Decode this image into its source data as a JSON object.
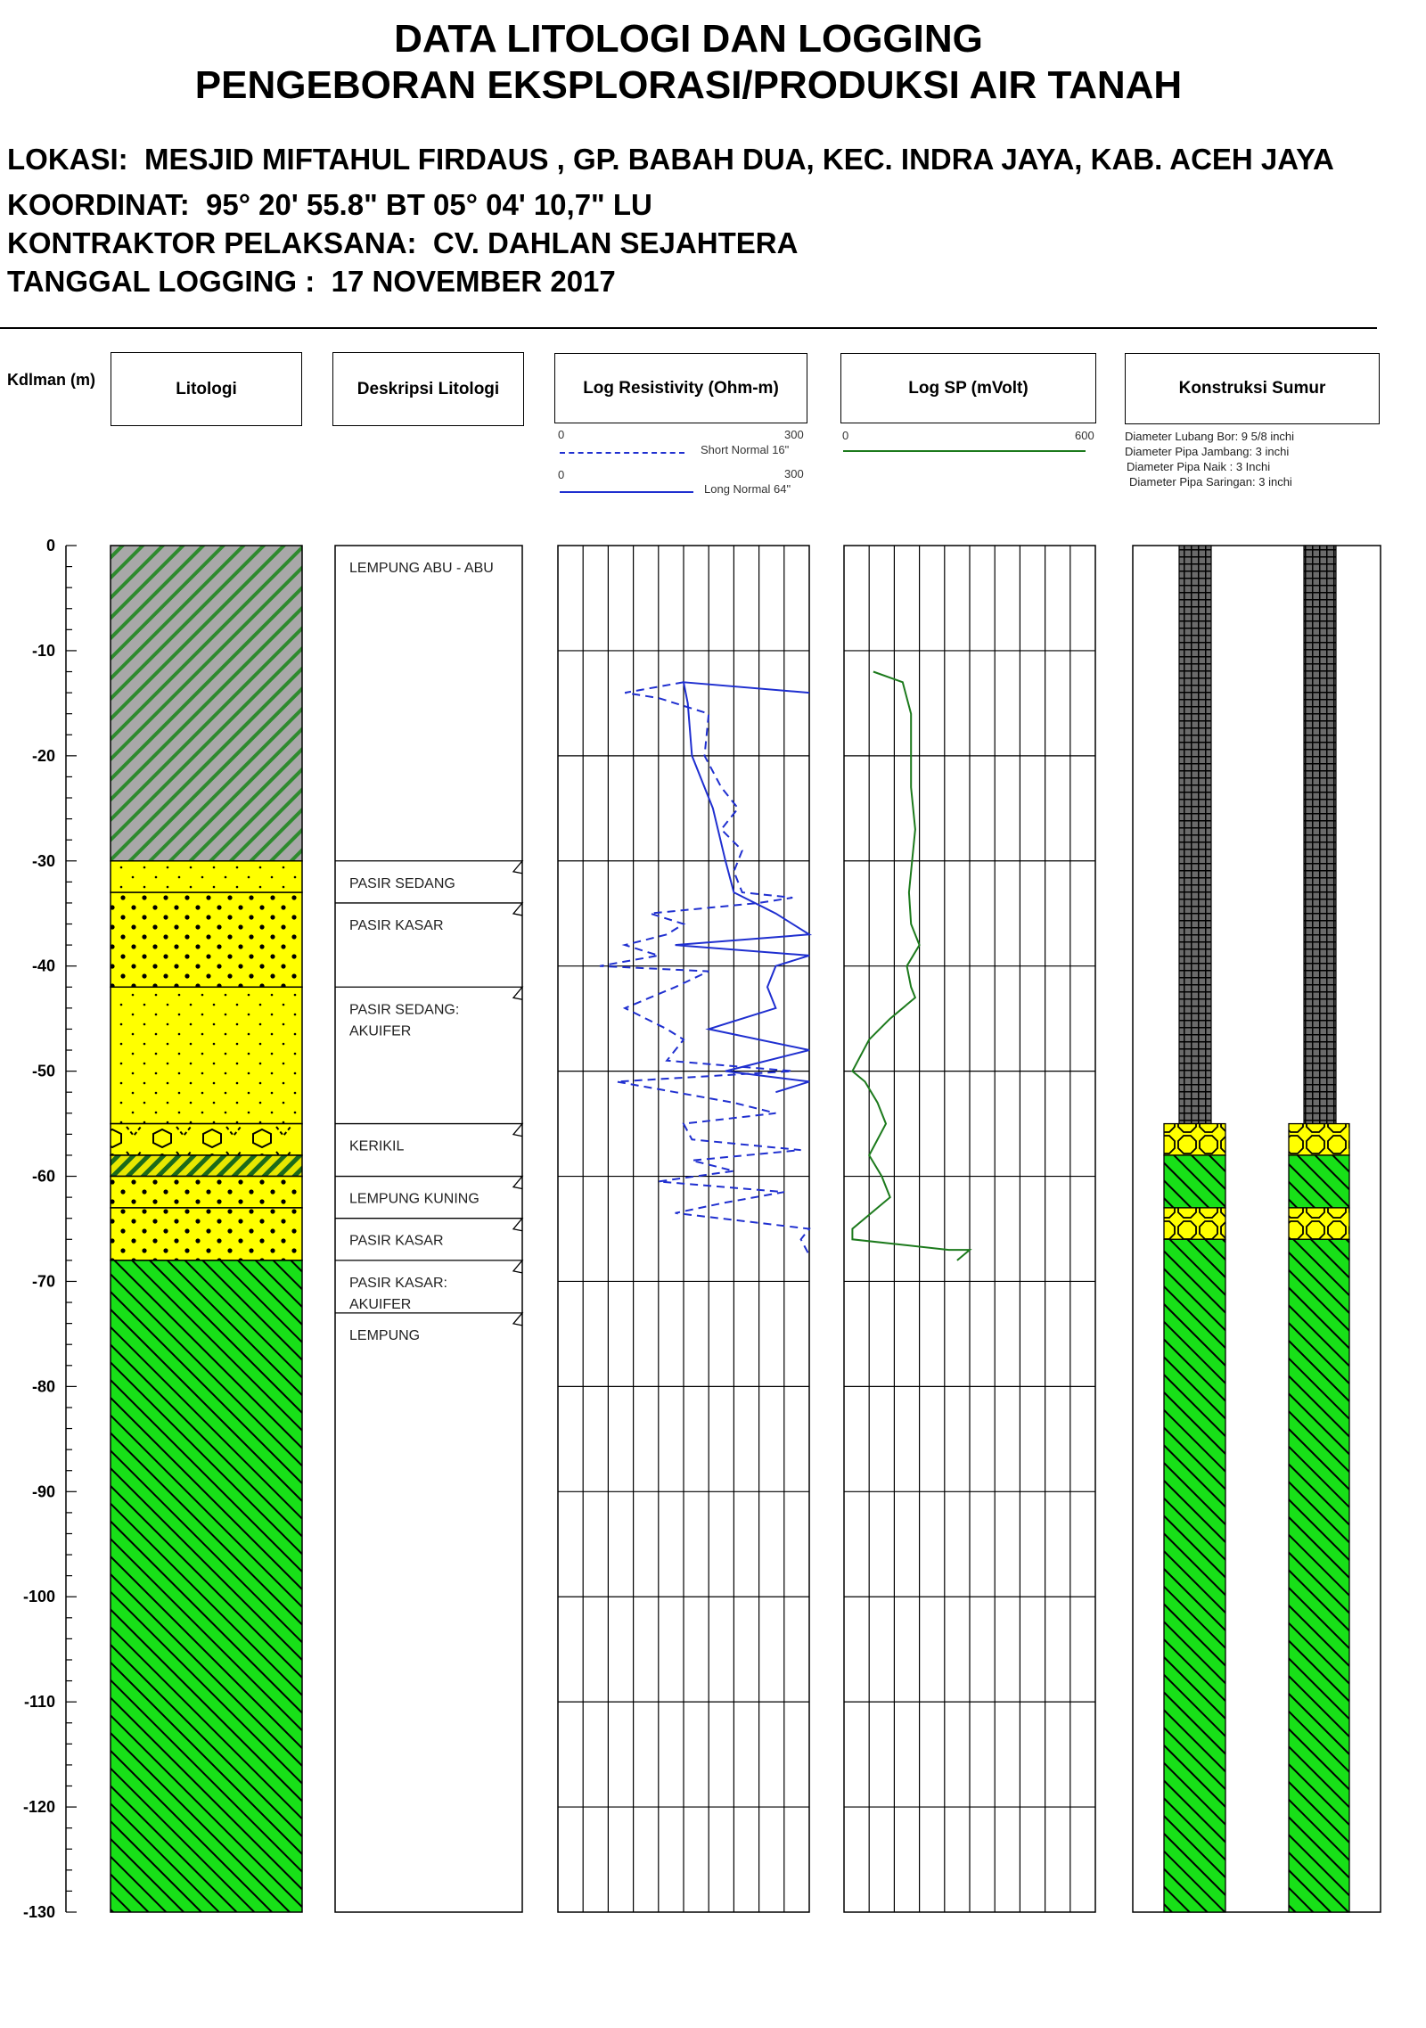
{
  "header": {
    "title_line1": "DATA LITOLOGI DAN LOGGING",
    "title_line2": "PENGEBORAN EKSPLORASI/PRODUKSI AIR TANAH",
    "lokasi_label": "LOKASI:",
    "lokasi_value": "MESJID MIFTAHUL FIRDAUS , GP. BABAH DUA, KEC. INDRA JAYA, KAB. ACEH JAYA",
    "koordinat_label": "KOORDINAT:",
    "koordinat_value": "95° 20'  55.8\" BT 05° 04'  10,7\" LU",
    "kontraktor_label": "KONTRAKTOR PELAKSANA:",
    "kontraktor_value": "CV. DAHLAN SEJAHTERA",
    "tanggal_label": "TANGGAL LOGGING :",
    "tanggal_value": "17 NOVEMBER 2017"
  },
  "columns": {
    "depth_label": "Kdlman (m)",
    "litologi": "Litologi",
    "deskripsi": "Deskripsi Litologi",
    "resistivity": "Log Resistivity (Ohm-m)",
    "sp": "Log SP (mVolt)",
    "konstruksi": "Konstruksi Sumur"
  },
  "legend": {
    "short_normal": {
      "name": "Short Normal 16\"",
      "min": "0",
      "max": "300",
      "color": "#1f2fd0"
    },
    "long_normal": {
      "name": "Long Normal 64\"",
      "min": "0",
      "max": "300",
      "color": "#1f2fd0"
    },
    "sp": {
      "min": "0",
      "max": "600",
      "color": "#1c7a1c"
    },
    "construction": [
      "Diameter Lubang Bor: 9 5/8 inchi",
      "Diameter Pipa Jambang:   3 inchi",
      "Diameter Pipa Naik :  3 Inchi",
      "Diameter Pipa Saringan:   3  inchi"
    ]
  },
  "depth_axis": {
    "min": 0,
    "max": -130,
    "ticks": [
      "0",
      "-10",
      "-20",
      "-30",
      "-40",
      "-50",
      "-60",
      "-70",
      "-80",
      "-90",
      "-100",
      "-110",
      "-120",
      "-130"
    ]
  },
  "lithology": [
    {
      "top": 0,
      "bottom": 30,
      "pattern": "clay-grey"
    },
    {
      "top": 30,
      "bottom": 33,
      "pattern": "sand-medium"
    },
    {
      "top": 33,
      "bottom": 42,
      "pattern": "sand-coarse"
    },
    {
      "top": 42,
      "bottom": 55,
      "pattern": "sand-medium"
    },
    {
      "top": 55,
      "bottom": 58,
      "pattern": "gravel"
    },
    {
      "top": 58,
      "bottom": 60,
      "pattern": "clay-yellow"
    },
    {
      "top": 60,
      "bottom": 63,
      "pattern": "sand-coarse"
    },
    {
      "top": 63,
      "bottom": 68,
      "pattern": "sand-coarse"
    },
    {
      "top": 68,
      "bottom": 130,
      "pattern": "clay-green"
    }
  ],
  "descriptions": [
    {
      "depth": 0,
      "lines": [
        "LEMPUNG ABU - ABU"
      ]
    },
    {
      "depth": 30,
      "lines": [
        "PASIR SEDANG"
      ]
    },
    {
      "depth": 34,
      "lines": [
        "PASIR KASAR"
      ]
    },
    {
      "depth": 42,
      "lines": [
        "PASIR SEDANG:",
        "AKUIFER"
      ]
    },
    {
      "depth": 55,
      "lines": [
        "KERIKIL"
      ]
    },
    {
      "depth": 60,
      "lines": [
        "LEMPUNG KUNING"
      ]
    },
    {
      "depth": 64,
      "lines": [
        "PASIR KASAR"
      ]
    },
    {
      "depth": 68,
      "lines": [
        "PASIR KASAR:",
        "AKUIFER"
      ]
    },
    {
      "depth": 73,
      "lines": [
        "LEMPUNG"
      ]
    }
  ],
  "chart_data": {
    "type": "line",
    "y_axis": "Kdlman (m)",
    "ylim": [
      0,
      -130
    ],
    "series": [
      {
        "name": "Short Normal 16\"",
        "style": "dashed",
        "xlim": [
          0,
          300
        ],
        "points": [
          [
            150,
            13
          ],
          [
            80,
            14
          ],
          [
            120,
            14.5
          ],
          [
            180,
            16
          ],
          [
            175,
            20
          ],
          [
            195,
            23
          ],
          [
            215,
            25
          ],
          [
            195,
            27
          ],
          [
            220,
            29
          ],
          [
            210,
            31
          ],
          [
            220,
            33
          ],
          [
            280,
            33.5
          ],
          [
            240,
            34
          ],
          [
            110,
            35
          ],
          [
            150,
            36
          ],
          [
            130,
            37
          ],
          [
            80,
            38
          ],
          [
            120,
            39
          ],
          [
            50,
            40
          ],
          [
            180,
            40.5
          ],
          [
            140,
            42
          ],
          [
            110,
            43
          ],
          [
            80,
            44
          ],
          [
            130,
            46
          ],
          [
            150,
            47
          ],
          [
            130,
            49
          ],
          [
            280,
            50
          ],
          [
            70,
            51
          ],
          [
            140,
            52
          ],
          [
            210,
            53
          ],
          [
            260,
            54
          ],
          [
            150,
            55
          ],
          [
            160,
            56.5
          ],
          [
            290,
            57.5
          ],
          [
            160,
            58.5
          ],
          [
            210,
            59.5
          ],
          [
            120,
            60.5
          ],
          [
            270,
            61.5
          ],
          [
            200,
            62.5
          ],
          [
            140,
            63.5
          ],
          [
            300,
            65
          ],
          [
            290,
            66
          ],
          [
            300,
            67.5
          ]
        ]
      },
      {
        "name": "Long Normal 64\"",
        "style": "solid",
        "xlim": [
          0,
          300
        ],
        "points": [
          [
            300,
            14
          ],
          [
            150,
            13
          ],
          [
            155,
            15
          ],
          [
            160,
            20
          ],
          [
            185,
            25
          ],
          [
            200,
            30
          ],
          [
            210,
            33
          ],
          [
            260,
            35
          ],
          [
            300,
            37
          ],
          [
            140,
            38
          ],
          [
            300,
            39
          ],
          [
            260,
            40
          ],
          [
            250,
            42
          ],
          [
            260,
            44
          ],
          [
            180,
            46
          ],
          [
            300,
            48
          ],
          [
            200,
            50
          ],
          [
            300,
            51
          ],
          [
            260,
            52
          ]
        ]
      },
      {
        "name": "Log SP",
        "style": "solid",
        "xlim": [
          0,
          600
        ],
        "points": [
          [
            70,
            12
          ],
          [
            140,
            13
          ],
          [
            160,
            16
          ],
          [
            160,
            23
          ],
          [
            170,
            27
          ],
          [
            155,
            33
          ],
          [
            160,
            36
          ],
          [
            180,
            38
          ],
          [
            150,
            40
          ],
          [
            160,
            42
          ],
          [
            170,
            43
          ],
          [
            110,
            45
          ],
          [
            60,
            47
          ],
          [
            20,
            50
          ],
          [
            50,
            51
          ],
          [
            80,
            53
          ],
          [
            100,
            55
          ],
          [
            60,
            58
          ],
          [
            90,
            60
          ],
          [
            110,
            62
          ],
          [
            80,
            63
          ],
          [
            20,
            65
          ],
          [
            20,
            66
          ],
          [
            250,
            67
          ],
          [
            300,
            67
          ],
          [
            270,
            68
          ]
        ]
      }
    ]
  },
  "construction": {
    "casing_top": 0,
    "casing_bottom": 55,
    "segments": [
      {
        "top": 55,
        "bottom": 58,
        "pattern": "screen"
      },
      {
        "top": 58,
        "bottom": 63,
        "pattern": "clay-green-fill"
      },
      {
        "top": 63,
        "bottom": 66,
        "pattern": "screen"
      },
      {
        "top": 66,
        "bottom": 130,
        "pattern": "clay-green"
      }
    ]
  }
}
